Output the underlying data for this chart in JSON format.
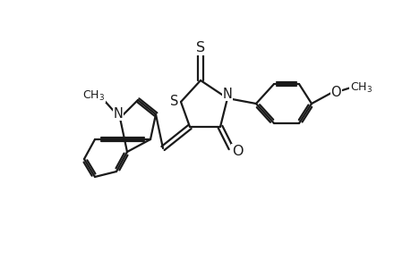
{
  "background_color": "#ffffff",
  "line_color": "#1a1a1a",
  "line_width": 1.6,
  "font_size": 10.5,
  "xlim": [
    0.0,
    9.5
  ],
  "ylim": [
    0.5,
    8.0
  ],
  "figsize": [
    4.6,
    3.0
  ],
  "dpi": 100
}
